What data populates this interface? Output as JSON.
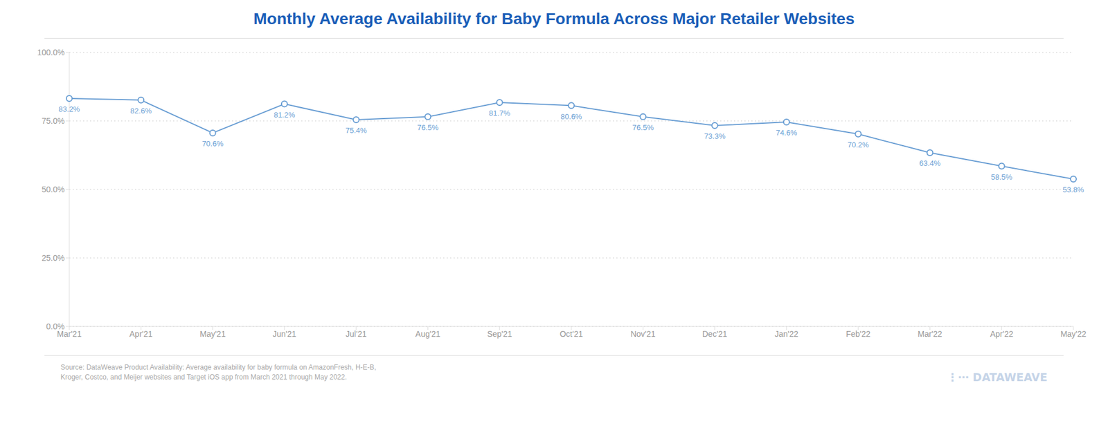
{
  "chart_data": {
    "type": "line",
    "title": "Monthly Average Availability for Baby Formula Across Major Retailer Websites",
    "categories": [
      "Mar'21",
      "Apr'21",
      "May'21",
      "Jun'21",
      "Jul'21",
      "Aug'21",
      "Sep'21",
      "Oct'21",
      "Nov'21",
      "Dec'21",
      "Jan'22",
      "Feb'22",
      "Mar'22",
      "Apr'22",
      "May'22"
    ],
    "values": [
      83.2,
      82.6,
      70.6,
      81.2,
      75.4,
      76.5,
      81.7,
      80.6,
      76.5,
      73.3,
      74.6,
      70.2,
      63.4,
      58.5,
      53.8
    ],
    "value_labels": [
      "83.2%",
      "82.6%",
      "70.6%",
      "81.2%",
      "75.4%",
      "76.5%",
      "81.7%",
      "80.6%",
      "76.5%",
      "73.3%",
      "74.6%",
      "70.2%",
      "63.4%",
      "58.5%",
      "53.8%"
    ],
    "data_labels": true,
    "color": "#6b9fd4",
    "marker": "circle",
    "ylim": [
      0,
      100
    ],
    "yticks": [
      {
        "value": 0,
        "label": "0.0%"
      },
      {
        "value": 25,
        "label": "25.0%"
      },
      {
        "value": 50,
        "label": "50.0%"
      },
      {
        "value": 75,
        "label": "75.0%"
      },
      {
        "value": 100,
        "label": "100.0%"
      }
    ],
    "grid": true,
    "annotations": [
      "Source: DataWeave Product Availability: Average availability for baby formula on AmazonFresh, H-E-B,\nKroger, Costco, and Meijer websites and Target iOS app from March 2021 through May 2022.",
      "⋮⋯ DATAWEAVE"
    ]
  }
}
